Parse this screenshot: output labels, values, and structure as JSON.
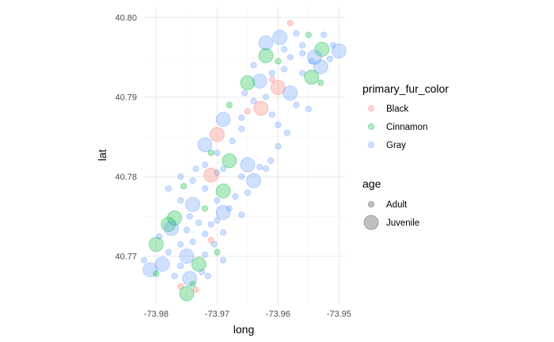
{
  "chart_data": {
    "type": "scatter",
    "xlabel": "long",
    "ylabel": "lat",
    "xlim": [
      -73.982,
      -73.949
    ],
    "ylim": [
      40.764,
      40.8012
    ],
    "x_ticks": [
      {
        "value": -73.98,
        "label": "-73.98"
      },
      {
        "value": -73.97,
        "label": "-73.97"
      },
      {
        "value": -73.96,
        "label": "-73.96"
      },
      {
        "value": -73.95,
        "label": "-73.95"
      }
    ],
    "y_ticks": [
      {
        "value": 40.77,
        "label": "40.77"
      },
      {
        "value": 40.78,
        "label": "40.78"
      },
      {
        "value": 40.79,
        "label": "40.79"
      },
      {
        "value": 40.8,
        "label": "40.80"
      }
    ],
    "grid": true,
    "legend_position": "right",
    "color_legend": {
      "title": "primary_fur_color",
      "items": [
        {
          "label": "Black",
          "color": "#F8766D"
        },
        {
          "label": "Cinnamon",
          "color": "#00BA38"
        },
        {
          "label": "Gray",
          "color": "#619CFF"
        }
      ]
    },
    "size_legend": {
      "title": "age",
      "items": [
        {
          "label": "Adult"
        },
        {
          "label": "Juvenile"
        }
      ]
    },
    "points": [
      {
        "long": -73.958,
        "lat": 40.7993,
        "color": "Black",
        "age": "Adult"
      },
      {
        "long": -73.962,
        "lat": 40.7968,
        "color": "Gray",
        "age": "Juvenile"
      },
      {
        "long": -73.9597,
        "lat": 40.7975,
        "color": "Gray",
        "age": "Juvenile"
      },
      {
        "long": -73.957,
        "lat": 40.798,
        "color": "Gray",
        "age": "Adult"
      },
      {
        "long": -73.955,
        "lat": 40.7978,
        "color": "Cinnamon",
        "age": "Adult"
      },
      {
        "long": -73.9525,
        "lat": 40.7978,
        "color": "Gray",
        "age": "Adult"
      },
      {
        "long": -73.951,
        "lat": 40.7965,
        "color": "Gray",
        "age": "Adult"
      },
      {
        "long": -73.95,
        "lat": 40.7958,
        "color": "Gray",
        "age": "Juvenile"
      },
      {
        "long": -73.9528,
        "lat": 40.796,
        "color": "Cinnamon",
        "age": "Juvenile"
      },
      {
        "long": -73.954,
        "lat": 40.795,
        "color": "Gray",
        "age": "Juvenile"
      },
      {
        "long": -73.956,
        "lat": 40.7955,
        "color": "Gray",
        "age": "Adult"
      },
      {
        "long": -73.958,
        "lat": 40.795,
        "color": "Gray",
        "age": "Adult"
      },
      {
        "long": -73.96,
        "lat": 40.7945,
        "color": "Cinnamon",
        "age": "Adult"
      },
      {
        "long": -73.962,
        "lat": 40.7952,
        "color": "Cinnamon",
        "age": "Juvenile"
      },
      {
        "long": -73.964,
        "lat": 40.794,
        "color": "Gray",
        "age": "Adult"
      },
      {
        "long": -73.959,
        "lat": 40.7935,
        "color": "Gray",
        "age": "Adult"
      },
      {
        "long": -73.956,
        "lat": 40.793,
        "color": "Gray",
        "age": "Adult"
      },
      {
        "long": -73.953,
        "lat": 40.7938,
        "color": "Gray",
        "age": "Juvenile"
      },
      {
        "long": -73.9545,
        "lat": 40.7925,
        "color": "Cinnamon",
        "age": "Juvenile"
      },
      {
        "long": -73.953,
        "lat": 40.7918,
        "color": "Cinnamon",
        "age": "Adult"
      },
      {
        "long": -73.961,
        "lat": 40.7922,
        "color": "Black",
        "age": "Adult"
      },
      {
        "long": -73.963,
        "lat": 40.792,
        "color": "Gray",
        "age": "Juvenile"
      },
      {
        "long": -73.965,
        "lat": 40.7918,
        "color": "Cinnamon",
        "age": "Juvenile"
      },
      {
        "long": -73.96,
        "lat": 40.7912,
        "color": "Black",
        "age": "Juvenile"
      },
      {
        "long": -73.958,
        "lat": 40.7905,
        "color": "Gray",
        "age": "Juvenile"
      },
      {
        "long": -73.962,
        "lat": 40.79,
        "color": "Gray",
        "age": "Adult"
      },
      {
        "long": -73.964,
        "lat": 40.7895,
        "color": "Gray",
        "age": "Adult"
      },
      {
        "long": -73.957,
        "lat": 40.789,
        "color": "Gray",
        "age": "Adult"
      },
      {
        "long": -73.955,
        "lat": 40.7885,
        "color": "Gray",
        "age": "Adult"
      },
      {
        "long": -73.9628,
        "lat": 40.7886,
        "color": "Black",
        "age": "Juvenile"
      },
      {
        "long": -73.965,
        "lat": 40.7882,
        "color": "Black",
        "age": "Adult"
      },
      {
        "long": -73.968,
        "lat": 40.789,
        "color": "Cinnamon",
        "age": "Adult"
      },
      {
        "long": -73.966,
        "lat": 40.7874,
        "color": "Gray",
        "age": "Adult"
      },
      {
        "long": -73.969,
        "lat": 40.7872,
        "color": "Gray",
        "age": "Juvenile"
      },
      {
        "long": -73.9585,
        "lat": 40.7855,
        "color": "Gray",
        "age": "Adult"
      },
      {
        "long": -73.96,
        "lat": 40.7838,
        "color": "Gray",
        "age": "Adult"
      },
      {
        "long": -73.9612,
        "lat": 40.782,
        "color": "Gray",
        "age": "Adult"
      },
      {
        "long": -73.97,
        "lat": 40.7853,
        "color": "Black",
        "age": "Juvenile"
      },
      {
        "long": -73.972,
        "lat": 40.784,
        "color": "Gray",
        "age": "Juvenile"
      },
      {
        "long": -73.97,
        "lat": 40.783,
        "color": "Gray",
        "age": "Adult"
      },
      {
        "long": -73.968,
        "lat": 40.782,
        "color": "Cinnamon",
        "age": "Juvenile"
      },
      {
        "long": -73.972,
        "lat": 40.7815,
        "color": "Gray",
        "age": "Adult"
      },
      {
        "long": -73.97,
        "lat": 40.7805,
        "color": "Gray",
        "age": "Adult"
      },
      {
        "long": -73.965,
        "lat": 40.7815,
        "color": "Gray",
        "age": "Juvenile"
      },
      {
        "long": -73.963,
        "lat": 40.7812,
        "color": "Gray",
        "age": "Adult"
      },
      {
        "long": -73.964,
        "lat": 40.7795,
        "color": "Gray",
        "age": "Juvenile"
      },
      {
        "long": -73.966,
        "lat": 40.78,
        "color": "Gray",
        "age": "Adult"
      },
      {
        "long": -73.971,
        "lat": 40.7802,
        "color": "Black",
        "age": "Juvenile"
      },
      {
        "long": -73.974,
        "lat": 40.7795,
        "color": "Gray",
        "age": "Adult"
      },
      {
        "long": -73.9755,
        "lat": 40.7788,
        "color": "Cinnamon",
        "age": "Adult"
      },
      {
        "long": -73.978,
        "lat": 40.7785,
        "color": "Gray",
        "age": "Adult"
      },
      {
        "long": -73.972,
        "lat": 40.7785,
        "color": "Gray",
        "age": "Adult"
      },
      {
        "long": -73.969,
        "lat": 40.7782,
        "color": "Cinnamon",
        "age": "Juvenile"
      },
      {
        "long": -73.967,
        "lat": 40.7775,
        "color": "Gray",
        "age": "Adult"
      },
      {
        "long": -73.97,
        "lat": 40.777,
        "color": "Gray",
        "age": "Adult"
      },
      {
        "long": -73.974,
        "lat": 40.7765,
        "color": "Gray",
        "age": "Juvenile"
      },
      {
        "long": -73.976,
        "lat": 40.777,
        "color": "Gray",
        "age": "Adult"
      },
      {
        "long": -73.972,
        "lat": 40.776,
        "color": "Cinnamon",
        "age": "Adult"
      },
      {
        "long": -73.969,
        "lat": 40.7755,
        "color": "Gray",
        "age": "Juvenile"
      },
      {
        "long": -73.966,
        "lat": 40.7752,
        "color": "Gray",
        "age": "Adult"
      },
      {
        "long": -73.97,
        "lat": 40.7745,
        "color": "Gray",
        "age": "Adult"
      },
      {
        "long": -73.973,
        "lat": 40.7742,
        "color": "Gray",
        "age": "Adult"
      },
      {
        "long": -73.977,
        "lat": 40.7748,
        "color": "Cinnamon",
        "age": "Juvenile"
      },
      {
        "long": -73.978,
        "lat": 40.774,
        "color": "Cinnamon",
        "age": "Juvenile"
      },
      {
        "long": -73.9775,
        "lat": 40.7735,
        "color": "Gray",
        "age": "Juvenile"
      },
      {
        "long": -73.975,
        "lat": 40.7733,
        "color": "Gray",
        "age": "Adult"
      },
      {
        "long": -73.972,
        "lat": 40.7728,
        "color": "Gray",
        "age": "Adult"
      },
      {
        "long": -73.969,
        "lat": 40.773,
        "color": "Gray",
        "age": "Adult"
      },
      {
        "long": -73.971,
        "lat": 40.772,
        "color": "Black",
        "age": "Adult"
      },
      {
        "long": -73.974,
        "lat": 40.7718,
        "color": "Gray",
        "age": "Adult"
      },
      {
        "long": -73.976,
        "lat": 40.7715,
        "color": "Gray",
        "age": "Adult"
      },
      {
        "long": -73.98,
        "lat": 40.7715,
        "color": "Cinnamon",
        "age": "Juvenile"
      },
      {
        "long": -73.978,
        "lat": 40.7705,
        "color": "Gray",
        "age": "Adult"
      },
      {
        "long": -73.975,
        "lat": 40.77,
        "color": "Gray",
        "age": "Juvenile"
      },
      {
        "long": -73.972,
        "lat": 40.7702,
        "color": "Gray",
        "age": "Adult"
      },
      {
        "long": -73.97,
        "lat": 40.7705,
        "color": "Cinnamon",
        "age": "Adult"
      },
      {
        "long": -73.969,
        "lat": 40.7695,
        "color": "Gray",
        "age": "Adult"
      },
      {
        "long": -73.973,
        "lat": 40.769,
        "color": "Cinnamon",
        "age": "Juvenile"
      },
      {
        "long": -73.976,
        "lat": 40.7688,
        "color": "Gray",
        "age": "Adult"
      },
      {
        "long": -73.979,
        "lat": 40.769,
        "color": "Gray",
        "age": "Juvenile"
      },
      {
        "long": -73.981,
        "lat": 40.7683,
        "color": "Gray",
        "age": "Juvenile"
      },
      {
        "long": -73.98,
        "lat": 40.7678,
        "color": "Cinnamon",
        "age": "Adult"
      },
      {
        "long": -73.977,
        "lat": 40.7675,
        "color": "Gray",
        "age": "Adult"
      },
      {
        "long": -73.9745,
        "lat": 40.7672,
        "color": "Gray",
        "age": "Juvenile"
      },
      {
        "long": -73.9715,
        "lat": 40.7675,
        "color": "Gray",
        "age": "Adult"
      },
      {
        "long": -73.976,
        "lat": 40.7662,
        "color": "Black",
        "age": "Adult"
      },
      {
        "long": -73.974,
        "lat": 40.7665,
        "color": "Cinnamon",
        "age": "Adult"
      },
      {
        "long": -73.9735,
        "lat": 40.7658,
        "color": "Black",
        "age": "Adult"
      },
      {
        "long": -73.975,
        "lat": 40.7653,
        "color": "Cinnamon",
        "age": "Juvenile"
      },
      {
        "long": -73.971,
        "lat": 40.774,
        "color": "Gray",
        "age": "Adult"
      },
      {
        "long": -73.968,
        "lat": 40.776,
        "color": "Gray",
        "age": "Adult"
      },
      {
        "long": -73.965,
        "lat": 40.778,
        "color": "Gray",
        "age": "Adult"
      },
      {
        "long": -73.962,
        "lat": 40.781,
        "color": "Gray",
        "age": "Adult"
      },
      {
        "long": -73.96,
        "lat": 40.7865,
        "color": "Gray",
        "age": "Adult"
      },
      {
        "long": -73.961,
        "lat": 40.7878,
        "color": "Gray",
        "age": "Adult"
      },
      {
        "long": -73.966,
        "lat": 40.786,
        "color": "Gray",
        "age": "Adult"
      },
      {
        "long": -73.9675,
        "lat": 40.7845,
        "color": "Gray",
        "age": "Adult"
      },
      {
        "long": -73.971,
        "lat": 40.783,
        "color": "Cinnamon",
        "age": "Adult"
      },
      {
        "long": -73.9735,
        "lat": 40.781,
        "color": "Gray",
        "age": "Adult"
      },
      {
        "long": -73.969,
        "lat": 40.781,
        "color": "Gray",
        "age": "Adult"
      },
      {
        "long": -73.976,
        "lat": 40.78,
        "color": "Gray",
        "age": "Adult"
      },
      {
        "long": -73.9745,
        "lat": 40.775,
        "color": "Gray",
        "age": "Adult"
      },
      {
        "long": -73.9705,
        "lat": 40.7715,
        "color": "Gray",
        "age": "Adult"
      },
      {
        "long": -73.9725,
        "lat": 40.768,
        "color": "Gray",
        "age": "Adult"
      },
      {
        "long": -73.9795,
        "lat": 40.7725,
        "color": "Gray",
        "age": "Adult"
      },
      {
        "long": -73.982,
        "lat": 40.7695,
        "color": "Gray",
        "age": "Adult"
      },
      {
        "long": -73.956,
        "lat": 40.7965,
        "color": "Gray",
        "age": "Adult"
      },
      {
        "long": -73.9545,
        "lat": 40.7945,
        "color": "Gray",
        "age": "Adult"
      },
      {
        "long": -73.9515,
        "lat": 40.7948,
        "color": "Gray",
        "age": "Adult"
      },
      {
        "long": -73.959,
        "lat": 40.796,
        "color": "Gray",
        "age": "Adult"
      },
      {
        "long": -73.961,
        "lat": 40.793,
        "color": "Gray",
        "age": "Adult"
      },
      {
        "long": -73.9655,
        "lat": 40.7905,
        "color": "Gray",
        "age": "Adult"
      }
    ]
  }
}
